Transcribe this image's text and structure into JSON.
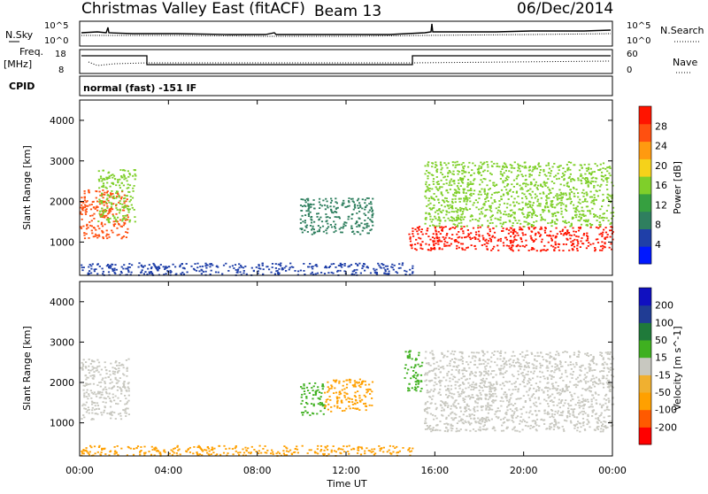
{
  "header": {
    "station": "Christmas Valley East (fitACF)",
    "beam": "Beam 13",
    "date": "06/Dec/2014"
  },
  "colors": {
    "power": [
      "#0018ff",
      "#1f3fa8",
      "#2f7f5f",
      "#36a040",
      "#7fcf2a",
      "#f5d21a",
      "#ff9a10",
      "#ff5010",
      "#ff1400"
    ],
    "velocity": [
      "#ff0000",
      "#ff5a00",
      "#ffa000",
      "#f0b030",
      "#c8c8c0",
      "#3fb020",
      "#1f7a3a",
      "#203c94",
      "#1010c0"
    ],
    "line": "#000000"
  },
  "panels": {
    "nsky": {
      "label": "N.Sky",
      "ticks_left": [
        "10^5",
        "10^0"
      ],
      "ticks_right": [
        "10^5",
        "10^0"
      ],
      "right_label": "N.Search"
    },
    "freq": {
      "label_line1": "Freq.",
      "label_line2": "[MHz]",
      "ticks_left": [
        "18",
        "8"
      ],
      "ticks_right": [
        "60",
        "0"
      ],
      "right_label": "Nave"
    },
    "cpid": {
      "label": "CPID",
      "text": "normal (fast) -151 IF"
    }
  },
  "power_plot": {
    "ylabel": "Slant Range [km]",
    "colorbar_label": "Power [dB]",
    "colorbar_ticks": [
      "28",
      "24",
      "20",
      "16",
      "12",
      "8",
      "4"
    ]
  },
  "velocity_plot": {
    "ylabel": "Slant Range [km]",
    "colorbar_label": "Velocity [m s^-1]",
    "colorbar_ticks": [
      "200",
      "100",
      "50",
      "15",
      "-15",
      "-50",
      "-100",
      "-200"
    ]
  },
  "chart_data": [
    {
      "type": "heatmap",
      "title": "Power",
      "xlabel": "",
      "ylabel": "Slant Range [km]",
      "xticks": [
        "00:00",
        "04:00",
        "08:00",
        "12:00",
        "16:00",
        "20:00",
        "00:00"
      ],
      "yticks": [
        1000,
        2000,
        3000,
        4000
      ],
      "xlim_hours": [
        0,
        24
      ],
      "ylim_km": [
        180,
        4500
      ],
      "colorbar": {
        "label": "Power [dB]",
        "ticks": [
          4,
          8,
          12,
          16,
          20,
          24,
          28
        ],
        "range": [
          0,
          30
        ]
      },
      "regions": [
        {
          "t0": 0.0,
          "t1": 2.2,
          "r0": 1100,
          "r1": 2300,
          "power": 24
        },
        {
          "t0": 0.8,
          "t1": 2.5,
          "r0": 1500,
          "r1": 2800,
          "power": 14
        },
        {
          "t0": 9.9,
          "t1": 13.2,
          "r0": 1200,
          "r1": 2100,
          "power": 8
        },
        {
          "t0": 14.8,
          "t1": 24.0,
          "r0": 800,
          "r1": 1400,
          "power": 27
        },
        {
          "t0": 15.5,
          "t1": 24.0,
          "r0": 1400,
          "r1": 3000,
          "power": 15
        },
        {
          "t0": 0.0,
          "t1": 15.0,
          "r0": 200,
          "r1": 500,
          "power": 6
        }
      ]
    },
    {
      "type": "heatmap",
      "title": "Velocity",
      "xlabel": "Time UT",
      "ylabel": "Slant Range [km]",
      "xticks": [
        "00:00",
        "04:00",
        "08:00",
        "12:00",
        "16:00",
        "20:00",
        "00:00"
      ],
      "yticks": [
        1000,
        2000,
        3000,
        4000
      ],
      "xlim_hours": [
        0,
        24
      ],
      "ylim_km": [
        180,
        4500
      ],
      "colorbar": {
        "label": "Velocity [m s^-1]",
        "ticks": [
          -200,
          -100,
          -50,
          -15,
          15,
          50,
          100,
          200
        ]
      },
      "regions": [
        {
          "t0": 0.0,
          "t1": 2.2,
          "r0": 1100,
          "r1": 2600,
          "velocity": 0
        },
        {
          "t0": 9.9,
          "t1": 11.0,
          "r0": 1200,
          "r1": 2000,
          "velocity": 40
        },
        {
          "t0": 11.0,
          "t1": 13.2,
          "r0": 1300,
          "r1": 2100,
          "velocity": -60
        },
        {
          "t0": 14.6,
          "t1": 15.4,
          "r0": 1800,
          "r1": 2800,
          "velocity": 40
        },
        {
          "t0": 15.5,
          "t1": 24.0,
          "r0": 800,
          "r1": 2800,
          "velocity": 0
        },
        {
          "t0": 0.0,
          "t1": 15.0,
          "r0": 200,
          "r1": 450,
          "velocity": -50
        }
      ]
    }
  ]
}
